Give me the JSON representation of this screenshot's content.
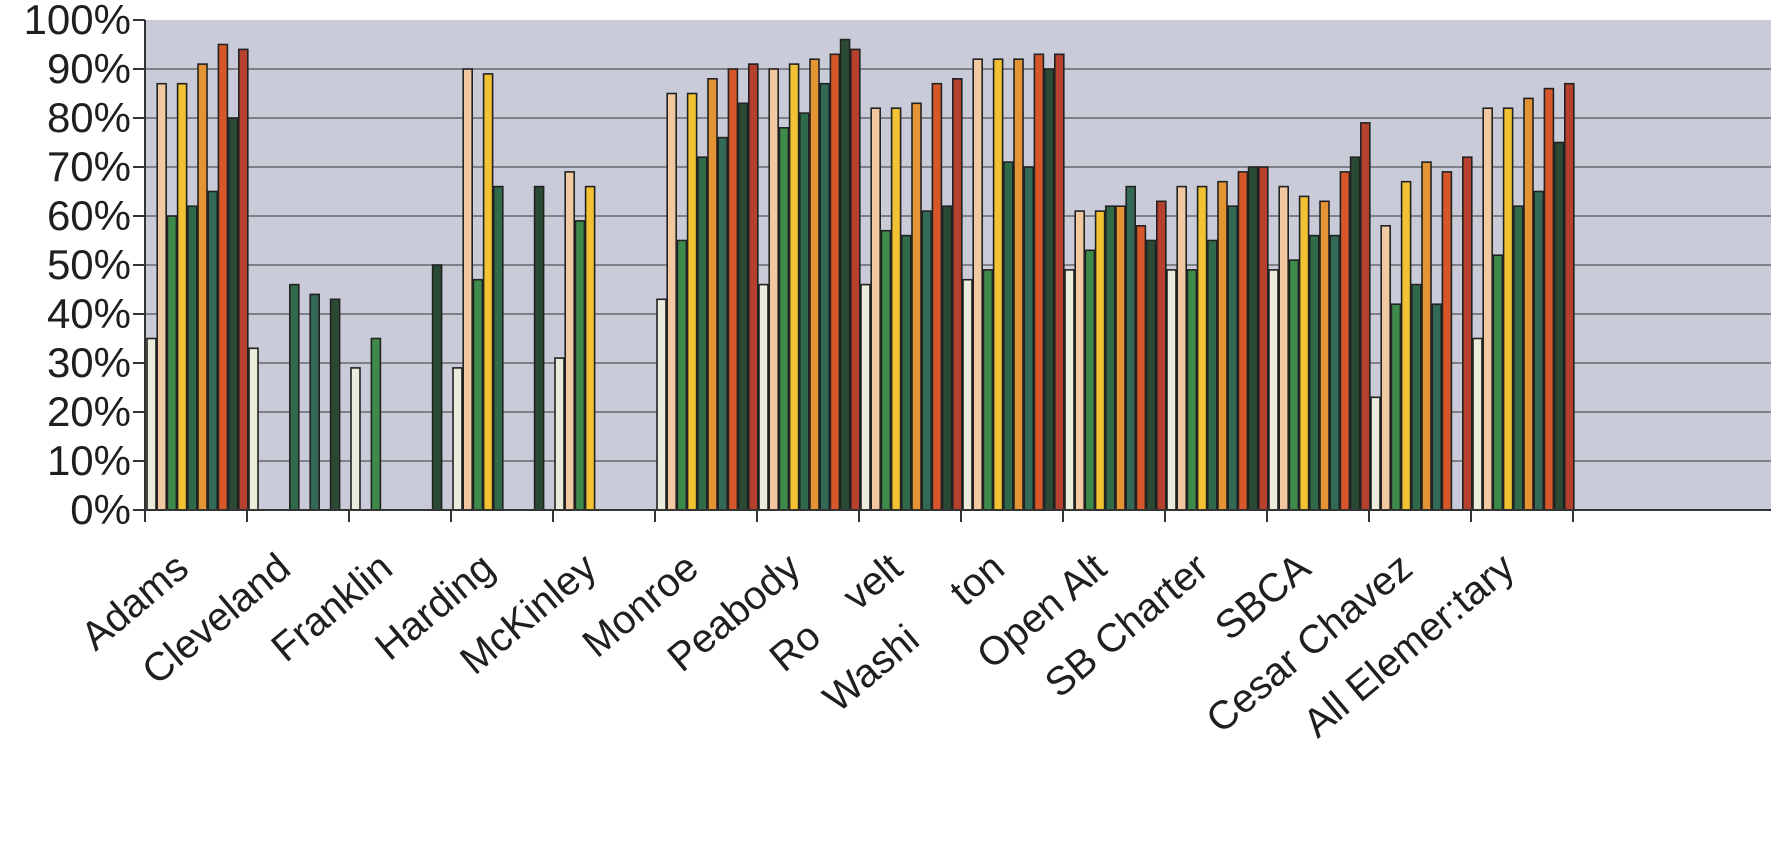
{
  "chart_data": {
    "type": "bar",
    "categories": [
      "Adams",
      "Cleveland",
      "Franklin",
      "Harding",
      "McKinley",
      "Monroe",
      "Peabody",
      "Ro    velt",
      "Washi     ton",
      "Open Alt",
      "SB Charter",
      "SBCA",
      "Cesar Chavez",
      "All Elemer:tary"
    ],
    "ylim": [
      0,
      100
    ],
    "ytick_labels": [
      "0%",
      "10%",
      "20%",
      "30%",
      "40%",
      "50%",
      "60%",
      "70%",
      "80%",
      "90%",
      "100%"
    ],
    "grid": true,
    "plot_background": "#c9cbd9",
    "series": [
      {
        "color": "#ececdc",
        "values": [
          35,
          33,
          29,
          29,
          31,
          43,
          46,
          46,
          47,
          49,
          49,
          49,
          23,
          35
        ]
      },
      {
        "color": "#f2c8a0",
        "values": [
          87,
          null,
          null,
          90,
          69,
          85,
          90,
          82,
          92,
          61,
          66,
          66,
          58,
          82
        ]
      },
      {
        "color": "#3d8a4a",
        "values": [
          60,
          null,
          35,
          47,
          59,
          55,
          78,
          57,
          49,
          53,
          49,
          51,
          42,
          52
        ]
      },
      {
        "color": "#f2c232",
        "values": [
          87,
          null,
          null,
          89,
          66,
          85,
          91,
          82,
          92,
          61,
          66,
          64,
          67,
          82
        ]
      },
      {
        "color": "#2f6a4a",
        "values": [
          62,
          46,
          null,
          66,
          null,
          72,
          81,
          56,
          71,
          62,
          55,
          56,
          46,
          62
        ]
      },
      {
        "color": "#e59433",
        "values": [
          91,
          null,
          null,
          null,
          null,
          88,
          92,
          83,
          92,
          62,
          67,
          63,
          71,
          84
        ]
      },
      {
        "color": "#336a55",
        "values": [
          65,
          44,
          null,
          null,
          null,
          76,
          87,
          61,
          70,
          66,
          62,
          56,
          42,
          65
        ]
      },
      {
        "color": "#d8572a",
        "values": [
          95,
          null,
          null,
          null,
          null,
          90,
          93,
          87,
          93,
          58,
          69,
          69,
          69,
          86
        ]
      },
      {
        "color": "#2b4a35",
        "values": [
          80,
          43,
          50,
          66,
          null,
          83,
          96,
          62,
          90,
          55,
          70,
          72,
          null,
          75
        ]
      },
      {
        "color": "#b5402e",
        "values": [
          94,
          null,
          null,
          null,
          null,
          91,
          94,
          88,
          93,
          63,
          70,
          79,
          72,
          87
        ]
      }
    ]
  }
}
